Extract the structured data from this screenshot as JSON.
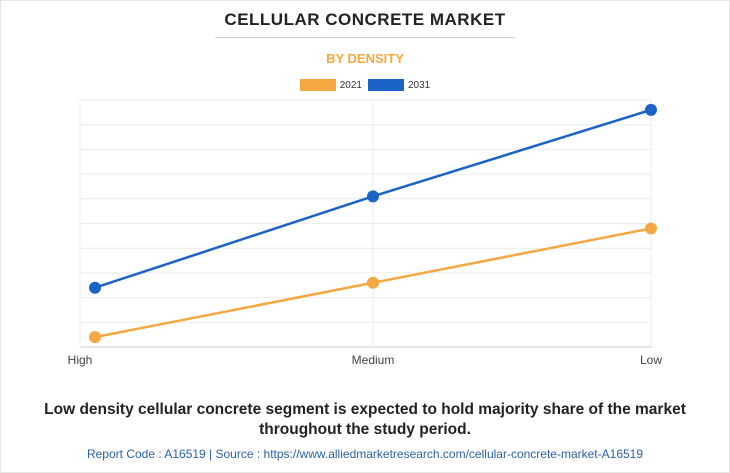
{
  "header": {
    "title": "CELLULAR CONCRETE MARKET",
    "subtitle": "BY DENSITY"
  },
  "colors": {
    "accent": "#f5a742",
    "series_2021": "#f5a742",
    "series_2031": "#1b63c6",
    "footer_link": "#2b5fa8"
  },
  "chart_data": {
    "type": "line",
    "title": "",
    "xlabel": "",
    "ylabel": "",
    "categories": [
      "High",
      "Medium",
      "Low"
    ],
    "series": [
      {
        "name": "2021",
        "values": [
          0.4,
          2.6,
          4.8
        ]
      },
      {
        "name": "2031",
        "values": [
          2.4,
          6.1,
          9.6
        ]
      }
    ],
    "ylim": [
      0,
      10
    ],
    "y_tick_labels_shown": false,
    "grid": true,
    "legend_position": "top-center"
  },
  "conclusion": "Low density cellular concrete segment is expected to hold majority share of the market throughout the study period.",
  "footer": {
    "text": "Report Code : A16519  |  Source : https://www.alliedmarketresearch.com/cellular-concrete-market-A16519"
  }
}
